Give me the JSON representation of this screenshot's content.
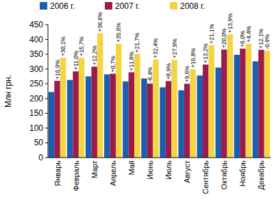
{
  "chart_data": {
    "type": "bar",
    "y_label": "Млн грн.",
    "categories": [
      "Январь",
      "Февраль",
      "Март",
      "Апрель",
      "Май",
      "Июнь",
      "Июль",
      "Август",
      "Сентябрь",
      "Октябрь",
      "Ноябрь",
      "Декабрь"
    ],
    "series": [
      {
        "name": "2006 г.",
        "color": "#1c5fae",
        "values": [
          222,
          263,
          275,
          282,
          258,
          268,
          238,
          228,
          278,
          305,
          348,
          326
        ]
      },
      {
        "name": "2007 г.",
        "color": "#9a1b4c",
        "values": [
          260,
          292,
          308,
          284,
          289,
          251,
          259,
          250,
          315,
          366,
          369,
          365
        ],
        "annotations": [
          "+16,9%",
          "+11,0%",
          "+12,2%",
          "+0,7%",
          "+11,8%",
          "-6,4%",
          "+8,9%",
          "+9,6%",
          "+13,2%",
          "+20,0%",
          "+6,0%",
          "+12,1%"
        ]
      },
      {
        "name": "2008 г.",
        "color": "#f5d442",
        "values": [
          338,
          338,
          421,
          385,
          351,
          332,
          331,
          299,
          381,
          417,
          385,
          362
        ],
        "annotations": [
          "+30,1%",
          "+15,7%",
          "+36,6%",
          "+35,6%",
          "+21,7%",
          "+32,4%",
          "+27,9%",
          "+19,8%",
          "+21,1%",
          "+13,9%",
          "+4,4%",
          "-0,9%"
        ]
      }
    ],
    "ylim": [
      0,
      450
    ],
    "yticks": [
      0,
      50,
      100,
      150,
      200,
      250,
      300,
      350,
      400,
      450
    ],
    "grid": false,
    "legend": "top"
  }
}
